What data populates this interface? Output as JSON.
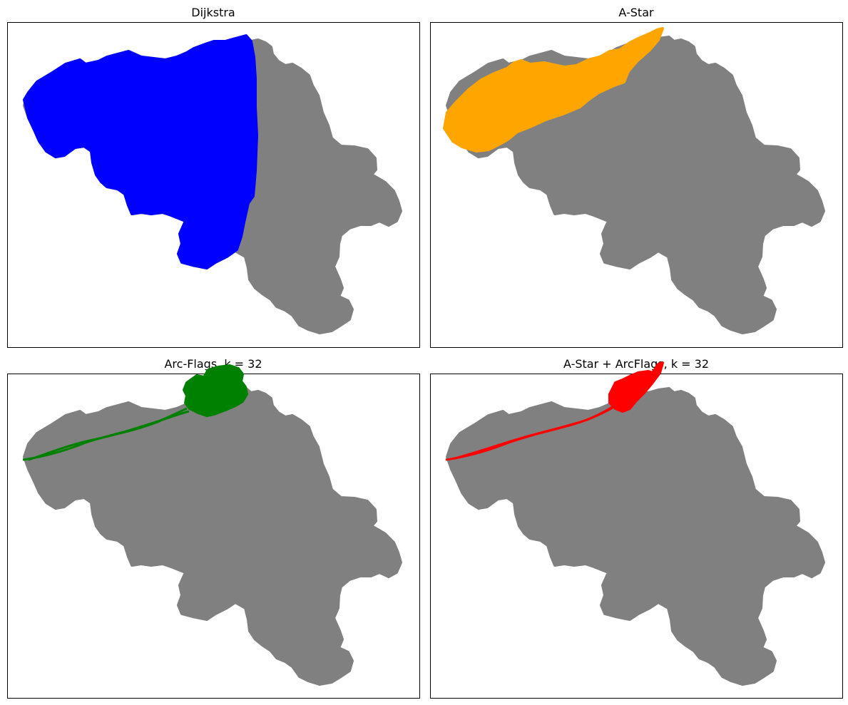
{
  "colors": {
    "background_nodes": "#808080",
    "dijkstra": "#0000ff",
    "astar": "#ffa500",
    "arcflags": "#008000",
    "astar_arcflags": "#ff0000",
    "frame": "#000000"
  },
  "chart_data": [
    {
      "type": "scatter",
      "title": "Dijkstra",
      "grid": false,
      "xticks": [],
      "yticks": [],
      "series": [
        {
          "role": "all_nodes",
          "color": "#808080",
          "alpha": 0.5
        },
        {
          "role": "visited_nodes",
          "color": "#0000ff",
          "region": "western half of the map"
        }
      ]
    },
    {
      "type": "scatter",
      "title": "A-Star",
      "grid": false,
      "xticks": [],
      "yticks": [],
      "series": [
        {
          "role": "all_nodes",
          "color": "#808080",
          "alpha": 0.5
        },
        {
          "role": "visited_nodes",
          "color": "#ffa500",
          "region": "diagonal band from west to north-east"
        }
      ]
    },
    {
      "type": "scatter",
      "title": "Arc-Flags, k = 32",
      "grid": false,
      "xticks": [],
      "yticks": [],
      "series": [
        {
          "role": "all_nodes",
          "color": "#808080",
          "alpha": 0.5
        },
        {
          "role": "visited_nodes",
          "color": "#008000",
          "region": "thin path west to north-east with blob at target"
        }
      ]
    },
    {
      "type": "scatter",
      "title": "A-Star + ArcFlags, k = 32",
      "grid": false,
      "xticks": [],
      "yticks": [],
      "series": [
        {
          "role": "all_nodes",
          "color": "#808080",
          "alpha": 0.5
        },
        {
          "role": "visited_nodes",
          "color": "#ff0000",
          "region": "thin path west to north-east with small loop at target"
        }
      ]
    }
  ]
}
